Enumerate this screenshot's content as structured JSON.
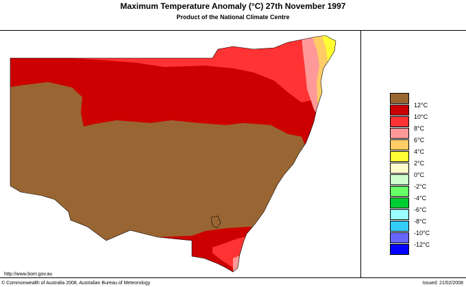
{
  "header": {
    "title": "Maximum Temperature Anomaly (°C)  27th November 1997",
    "subtitle": "Product of the National Climate Centre"
  },
  "legend": {
    "items": [
      {
        "label": "12°C",
        "color": "#996633"
      },
      {
        "label": "10°C",
        "color": "#cc0000"
      },
      {
        "label": "8°C",
        "color": "#ff3333"
      },
      {
        "label": "6°C",
        "color": "#ff9999"
      },
      {
        "label": "4°C",
        "color": "#ffcc66"
      },
      {
        "label": "2°C",
        "color": "#ffff33"
      },
      {
        "label": "0°C",
        "color": "#ffffcc"
      },
      {
        "label": "-2°C",
        "color": "#ccffcc"
      },
      {
        "label": "-4°C",
        "color": "#66ff66"
      },
      {
        "label": "-6°C",
        "color": "#00cc33"
      },
      {
        "label": "-8°C",
        "color": "#99ffff"
      },
      {
        "label": "-10°C",
        "color": "#33ccff"
      },
      {
        "label": "-12°C",
        "color": "#6666ff"
      },
      {
        "label": "",
        "color": "#0000ff"
      }
    ]
  },
  "footer": {
    "url": "http://www.bom.gov.au",
    "copyright": "© Commonwealth of Australia 2008, Australian Bureau of Meteorology",
    "issued": "Issued: 21/02/2008"
  }
}
